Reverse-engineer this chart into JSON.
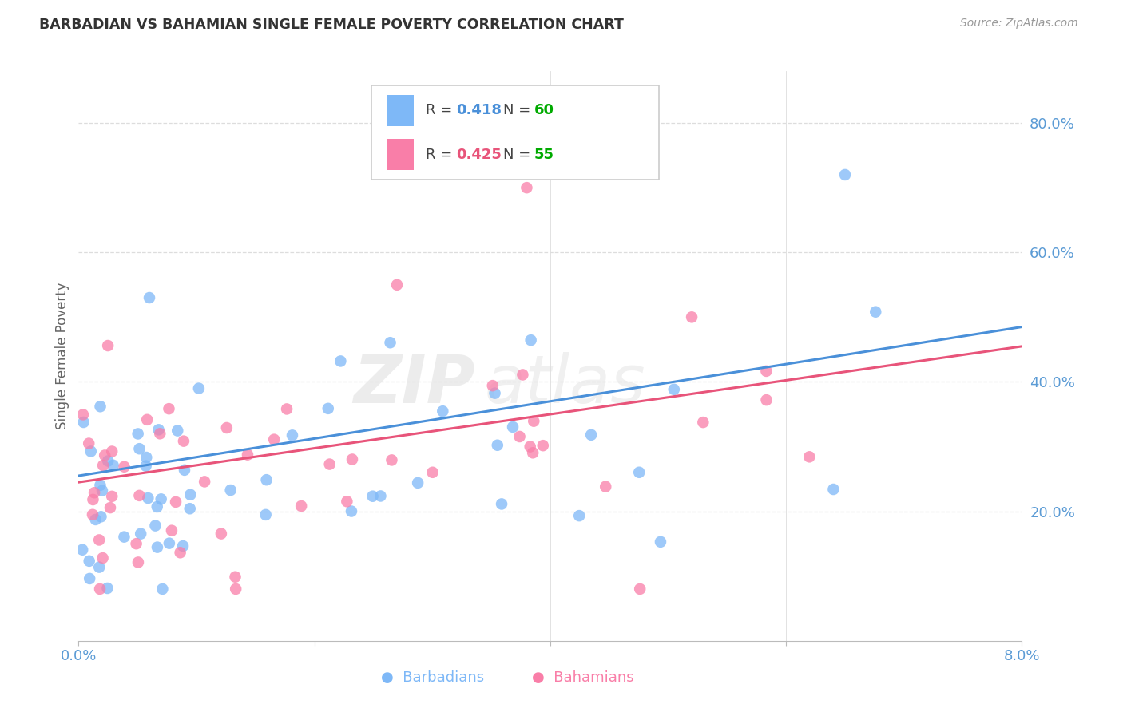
{
  "title": "BARBADIAN VS BAHAMIAN SINGLE FEMALE POVERTY CORRELATION CHART",
  "source": "Source: ZipAtlas.com",
  "ylabel": "Single Female Poverty",
  "xlim": [
    0.0,
    0.08
  ],
  "ylim": [
    0.0,
    0.88
  ],
  "yticks": [
    0.2,
    0.4,
    0.6,
    0.8
  ],
  "ytick_labels": [
    "20.0%",
    "40.0%",
    "60.0%",
    "80.0%"
  ],
  "xticks": [
    0.0,
    0.02,
    0.04,
    0.06,
    0.08
  ],
  "xtick_labels": [
    "0.0%",
    "",
    "",
    "",
    "8.0%"
  ],
  "barbadian_color": "#7EB8F7",
  "bahamian_color": "#F97EA8",
  "barbadian_line_color": "#4A90D9",
  "bahamian_line_color": "#E8547A",
  "R_barbadian": 0.418,
  "N_barbadian": 60,
  "R_bahamian": 0.425,
  "N_bahamian": 55,
  "background_color": "#FFFFFF",
  "grid_color": "#DDDDDD",
  "title_color": "#333333",
  "axis_label_color": "#5B9BD5",
  "right_ytick_color": "#5B9BD5",
  "watermark": "ZIPatlas",
  "line_y0_b": 0.255,
  "line_y1_b": 0.485,
  "line_y0_bah": 0.245,
  "line_y1_bah": 0.455
}
